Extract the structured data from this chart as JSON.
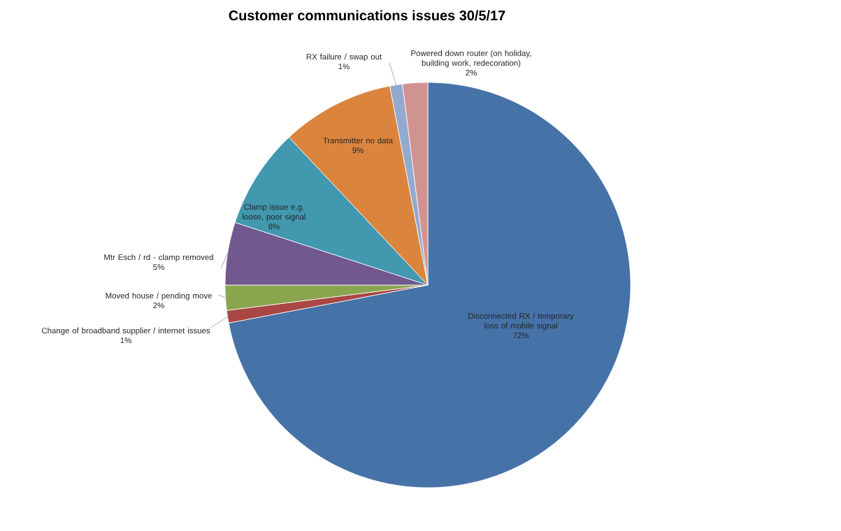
{
  "chart_data": {
    "type": "pie",
    "title": "Customer communications issues 30/5/17",
    "categories": [
      "Disconnected RX / temporary loss of mobile signal",
      "Change of broadband supplier / internet issues",
      "Moved house / pending move",
      "Mtr Esch / rd - clamp removed",
      "Clamp issue e.g. loose, poor signal",
      "Transmitter no data",
      "RX failure / swap out",
      "Powered down router (on holiday, building work, redecoration)"
    ],
    "values": [
      72,
      1,
      2,
      5,
      8,
      9,
      1,
      2
    ],
    "colors": [
      "#4572a7",
      "#aa4643",
      "#89a54e",
      "#71588f",
      "#4198af",
      "#db843d",
      "#93a9cf",
      "#d19392"
    ],
    "value_labels": [
      "72%",
      "1%",
      "2%",
      "5%",
      "8%",
      "9%",
      "1%",
      "2%"
    ]
  }
}
